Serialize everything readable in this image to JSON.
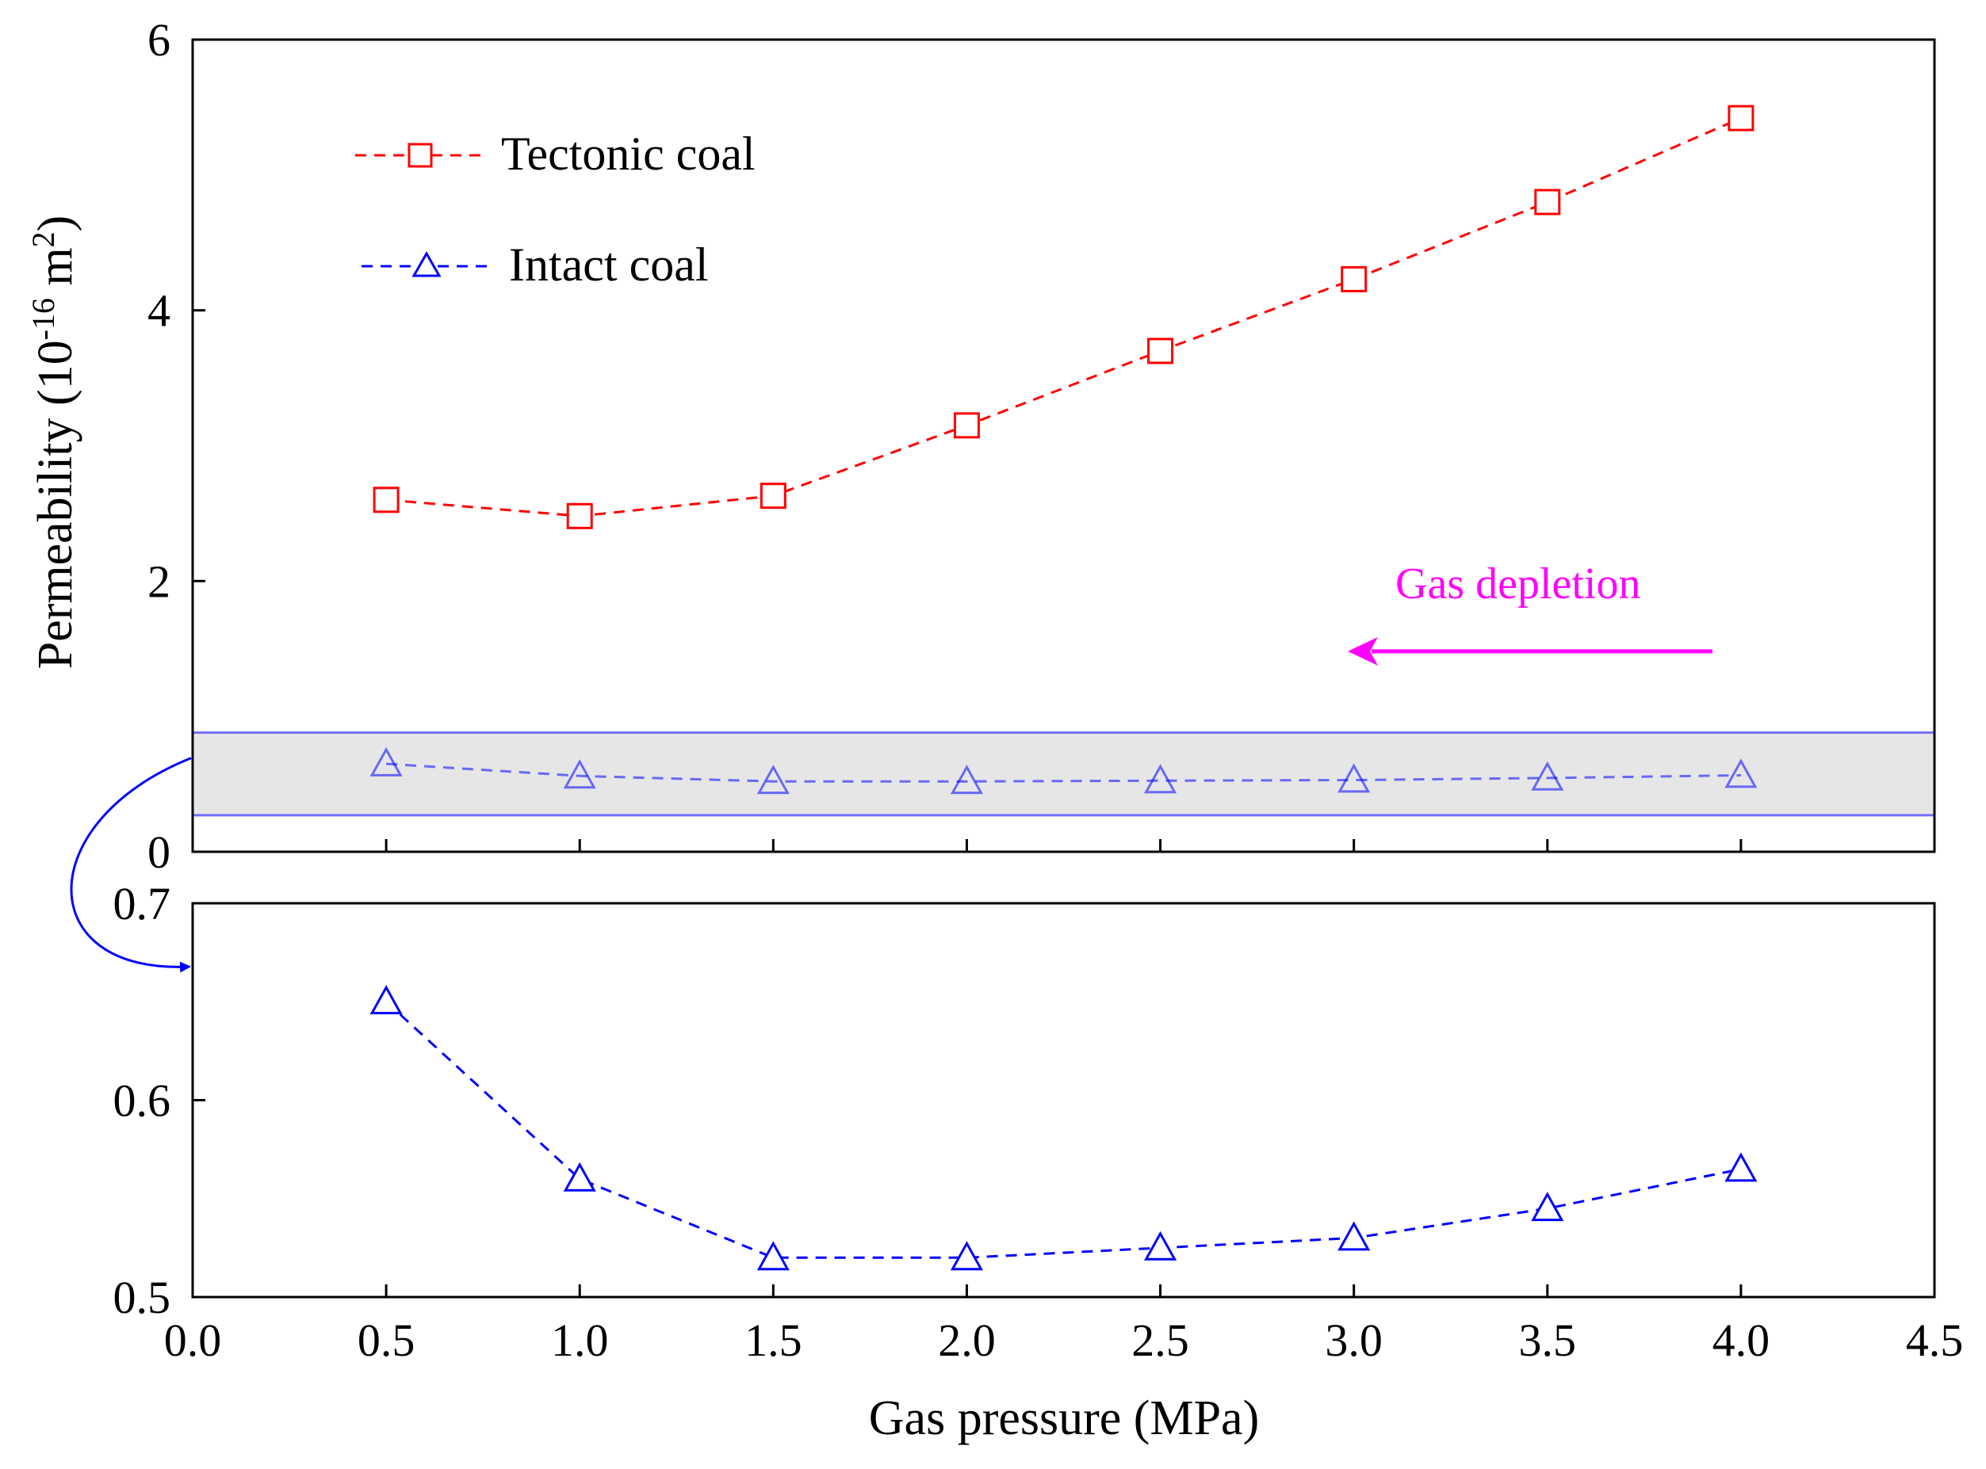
{
  "chart_data": {
    "type": "line",
    "xlabel": "Gas pressure (MPa)",
    "ylabel": {
      "prefix": "Permeability (10",
      "exponent": "-16",
      "middle": " m",
      "exponent2": "2",
      "suffix": ")"
    },
    "x_ticks": [
      "0.0",
      "0.5",
      "1.0",
      "1.5",
      "2.0",
      "2.5",
      "3.0",
      "3.5",
      "4.0",
      "4.5"
    ],
    "xlim": [
      0,
      4.5
    ],
    "x": [
      0.5,
      1.0,
      1.5,
      2.0,
      2.5,
      3.0,
      3.5,
      4.0
    ],
    "panels": [
      {
        "name": "main",
        "ylim": [
          0,
          6
        ],
        "y_ticks": [
          "0",
          "2",
          "4",
          "6"
        ],
        "highlight_band": [
          0.27,
          0.88
        ],
        "series": [
          {
            "name": "Tectonic coal",
            "color": "#ff0000",
            "marker": "square",
            "values": [
              2.6,
              2.48,
              2.63,
              3.15,
              3.7,
              4.23,
              4.8,
              5.42
            ]
          },
          {
            "name": "Intact coal",
            "color": "#0000ff",
            "marker": "triangle",
            "values": [
              0.65,
              0.56,
              0.52,
              0.52,
              0.525,
              0.53,
              0.545,
              0.565
            ]
          }
        ]
      },
      {
        "name": "zoom",
        "ylim": [
          0.5,
          0.7
        ],
        "y_ticks": [
          "0.5",
          "0.6",
          "0.7"
        ],
        "series": [
          {
            "name": "Intact coal",
            "color": "#0000ff",
            "marker": "triangle",
            "values": [
              0.65,
              0.56,
              0.52,
              0.52,
              0.525,
              0.53,
              0.545,
              0.565
            ]
          }
        ]
      }
    ],
    "legend": [
      "Tectonic coal",
      "Intact coal"
    ],
    "annotation": {
      "text": "Gas depletion",
      "color": "#ff00ff",
      "arrow_direction": "left"
    },
    "band_color": "#e6e6e6",
    "band_line_color": "#7070ff"
  }
}
